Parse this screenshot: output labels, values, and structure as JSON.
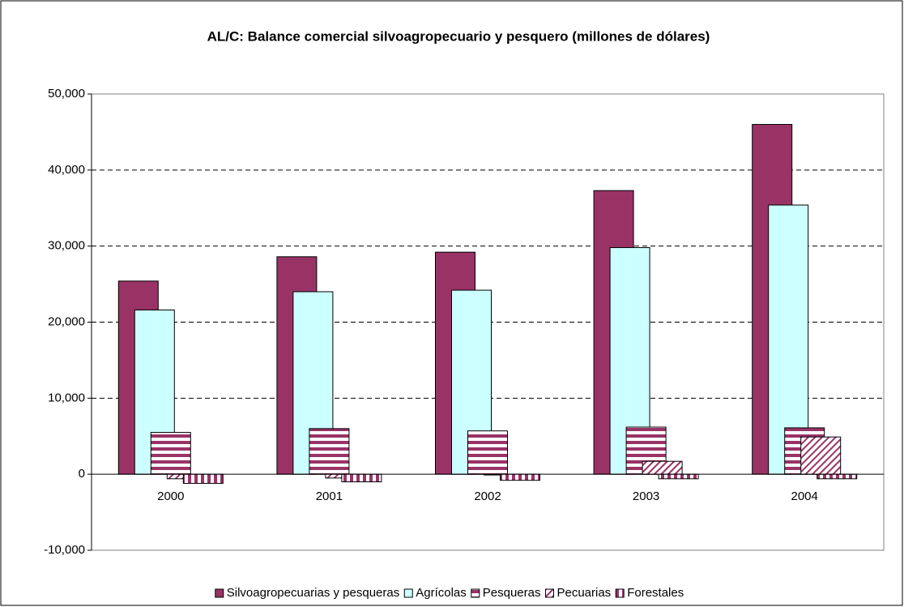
{
  "chart_data": {
    "type": "bar",
    "title": "AL/C: Balance comercial silvoagropecuario y pesquero (millones de dólares)",
    "categories": [
      "2000",
      "2001",
      "2002",
      "2003",
      "2004"
    ],
    "series": [
      {
        "name": "Silvoagropecuarias y pesqueras",
        "color": "#993366",
        "pattern": "solid",
        "values": [
          25400,
          28600,
          29200,
          37300,
          46000
        ]
      },
      {
        "name": "Agrícolas",
        "color": "#ccffff",
        "pattern": "solid",
        "values": [
          21600,
          24000,
          24200,
          29800,
          35400
        ]
      },
      {
        "name": "Pesqueras",
        "color": "#993366",
        "pattern": "horizontal",
        "values": [
          5500,
          6000,
          5700,
          6200,
          6100
        ]
      },
      {
        "name": "Pecuarias",
        "color": "#993366",
        "pattern": "diagonal",
        "values": [
          -600,
          -500,
          -100,
          1700,
          4900
        ]
      },
      {
        "name": "Forestales",
        "color": "#993366",
        "pattern": "vertical",
        "values": [
          -1200,
          -1000,
          -800,
          -600,
          -600
        ]
      }
    ],
    "ylim": [
      -10000,
      50000
    ],
    "yticks": [
      {
        "value": -10000,
        "label": "-10,000"
      },
      0,
      {
        "value": 10000,
        "label": "10,000"
      },
      {
        "value": 20000,
        "label": "20,000"
      },
      {
        "value": 30000,
        "label": "30,000"
      },
      {
        "value": 40000,
        "label": "40,000"
      },
      {
        "value": 50000,
        "label": "50,000"
      }
    ],
    "grid": true,
    "legend": "bottom"
  }
}
